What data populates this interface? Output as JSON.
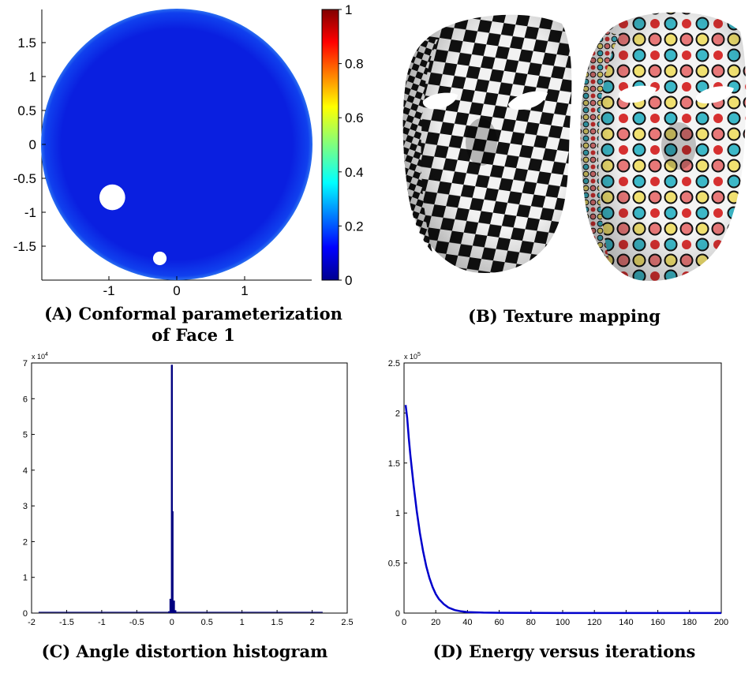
{
  "panels": {
    "a": {
      "caption_line1": "(A) Conformal parameterization",
      "caption_line2": "of Face 1"
    },
    "b": {
      "caption": "(B) Texture mapping"
    },
    "c": {
      "caption": "(C) Angle distortion histogram",
      "exponent_label": "x 10",
      "exponent_power": "4"
    },
    "d": {
      "caption": "(D) Energy versus iterations",
      "exponent_label": "x 10",
      "exponent_power": "5"
    }
  },
  "colors": {
    "disk_blue": "#0a1fe0",
    "checker_dark": "#111111",
    "checker_light": "#f2f2f2",
    "histogram_bar": "#000080",
    "energy_line": "#0000cc"
  },
  "chart_data": [
    {
      "id": "A",
      "type": "heatmap",
      "title": "Conformal parameterization of Face 1",
      "x_ticks": [
        "-1",
        "0",
        "1"
      ],
      "x_tick_values": [
        -1,
        0,
        1
      ],
      "y_ticks": [
        "1.5",
        "1",
        "0.5",
        "0",
        "-0.5",
        "-1",
        "-1.5"
      ],
      "y_tick_values": [
        1.5,
        1,
        0.5,
        0,
        -0.5,
        -1,
        -1.5
      ],
      "xlim": [
        -2,
        2
      ],
      "ylim": [
        -2,
        2
      ],
      "disk_radius": 2,
      "holes": [
        {
          "cx": -0.95,
          "cy": -0.78,
          "r": 0.19
        },
        {
          "cx": -0.25,
          "cy": -1.68,
          "r": 0.1
        }
      ],
      "colorbar": {
        "range": [
          0,
          1
        ],
        "ticks": [
          "0",
          "0.2",
          "0.4",
          "0.6",
          "0.8",
          "1"
        ],
        "tick_values": [
          0,
          0.2,
          0.4,
          0.6,
          0.8,
          1
        ],
        "colormap": "jet"
      }
    },
    {
      "id": "C",
      "type": "bar",
      "title": "Angle distortion histogram",
      "xlim": [
        -2,
        2.5
      ],
      "ylim": [
        0,
        7
      ],
      "y_scale_exponent": 4,
      "x_ticks": [
        "-2",
        "-1.5",
        "-1",
        "-0.5",
        "0",
        "0.5",
        "1",
        "1.5",
        "2",
        "2.5"
      ],
      "x_tick_values": [
        -2,
        -1.5,
        -1,
        -0.5,
        0,
        0.5,
        1,
        1.5,
        2,
        2.5
      ],
      "y_ticks": [
        "0",
        "1",
        "2",
        "3",
        "4",
        "5",
        "6",
        "7"
      ],
      "y_tick_values": [
        0,
        1,
        2,
        3,
        4,
        5,
        6,
        7
      ],
      "bins": [
        {
          "x": -0.04,
          "value": 0.05
        },
        {
          "x": -0.02,
          "value": 0.4
        },
        {
          "x": 0.0,
          "value": 6.95
        },
        {
          "x": 0.01,
          "value": 2.85
        },
        {
          "x": 0.03,
          "value": 0.35
        },
        {
          "x": 0.05,
          "value": 0.08
        }
      ]
    },
    {
      "id": "D",
      "type": "line",
      "title": "Energy versus iterations",
      "xlim": [
        0,
        200
      ],
      "ylim": [
        0,
        2.5
      ],
      "y_scale_exponent": 5,
      "x_ticks": [
        "0",
        "20",
        "40",
        "60",
        "80",
        "100",
        "120",
        "140",
        "160",
        "180",
        "200"
      ],
      "x_tick_values": [
        0,
        20,
        40,
        60,
        80,
        100,
        120,
        140,
        160,
        180,
        200
      ],
      "y_ticks": [
        "0",
        "0.5",
        "1",
        "1.5",
        "2",
        "2.5"
      ],
      "y_tick_values": [
        0,
        0.5,
        1,
        1.5,
        2,
        2.5
      ],
      "series": [
        {
          "name": "Energy",
          "x": [
            1,
            2,
            3,
            4,
            6,
            8,
            10,
            12,
            14,
            16,
            18,
            20,
            22,
            25,
            28,
            32,
            36,
            40,
            50,
            60,
            80,
            100,
            150,
            200
          ],
          "values": [
            2.08,
            1.95,
            1.75,
            1.58,
            1.28,
            1.02,
            0.8,
            0.62,
            0.47,
            0.35,
            0.26,
            0.19,
            0.14,
            0.09,
            0.055,
            0.03,
            0.017,
            0.01,
            0.005,
            0.003,
            0.002,
            0.001,
            0.001,
            0.001
          ]
        }
      ]
    }
  ]
}
